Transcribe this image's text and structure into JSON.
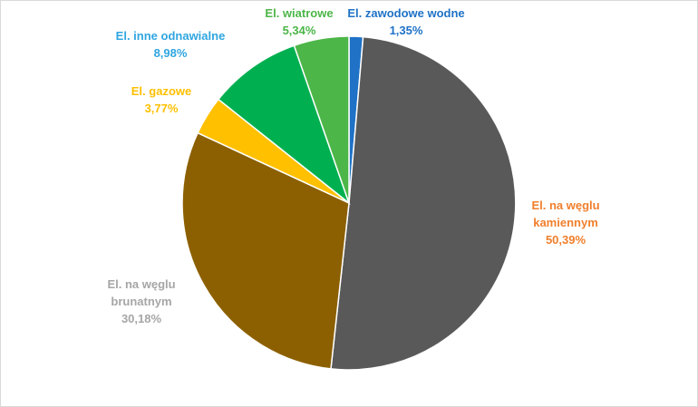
{
  "chart_data": {
    "type": "pie",
    "title": "",
    "slices": [
      {
        "label_lines": [
          "El. zawodowe wodne"
        ],
        "value": 1.35,
        "value_text": "1,35%",
        "color": "#1f72c6",
        "label_color": "#1f72c6"
      },
      {
        "label_lines": [
          "El. na węglu",
          "kamiennym"
        ],
        "value": 50.39,
        "value_text": "50,39%",
        "color": "#595959",
        "label_color": "#f07f2c"
      },
      {
        "label_lines": [
          "El.  na węglu",
          "brunatnym"
        ],
        "value": 30.18,
        "value_text": "30,18%",
        "color": "#8c6000",
        "label_color": "#a6a6a6"
      },
      {
        "label_lines": [
          "El. gazowe"
        ],
        "value": 3.77,
        "value_text": "3,77%",
        "color": "#ffc000",
        "label_color": "#ffc000"
      },
      {
        "label_lines": [
          "El. inne odnawialne"
        ],
        "value": 8.98,
        "value_text": "8,98%",
        "color": "#00b050",
        "label_color": "#2fa6e0"
      },
      {
        "label_lines": [
          "El. wiatrowe"
        ],
        "value": 5.34,
        "value_text": "5,34%",
        "color": "#4cb648",
        "label_color": "#4cb648"
      }
    ]
  }
}
